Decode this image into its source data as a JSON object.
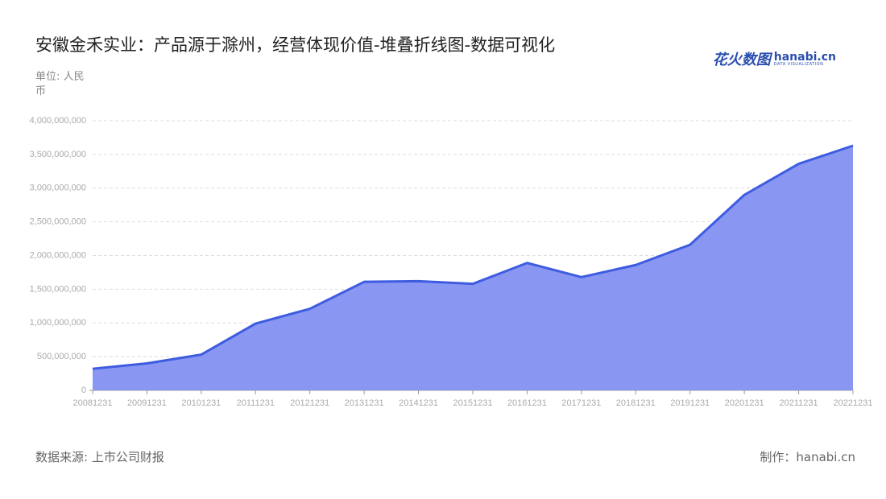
{
  "chart_data": {
    "type": "area",
    "title": "安徽金禾实业：产品源于滁州，经营体现价值-堆叠折线图-数据可视化",
    "unit_label": "单位: 人民币",
    "source": "数据来源: 上市公司财报",
    "credit": "制作：hanabi.cn",
    "logo": {
      "name": "花火数图",
      "site": "hanabi.cn",
      "tagline": "DATA VISUALIZATION"
    },
    "categories": [
      "20081231",
      "20091231",
      "20101231",
      "20111231",
      "20121231",
      "20131231",
      "20141231",
      "20151231",
      "20161231",
      "20171231",
      "20181231",
      "20191231",
      "20201231",
      "20211231",
      "20221231"
    ],
    "values": [
      320000000,
      400000000,
      530000000,
      990000000,
      1210000000,
      1610000000,
      1620000000,
      1580000000,
      1890000000,
      1680000000,
      1860000000,
      2160000000,
      2900000000,
      3360000000,
      3630000000
    ],
    "line_color": "#3d5ce0",
    "fill_color": "#8a97f2",
    "ylim": [
      0,
      4000000000
    ],
    "yticks": [
      0,
      {
        "value": 500000000,
        "label": "500,000,000"
      },
      {
        "value": 1000000000,
        "label": "1,000,000,000"
      },
      {
        "value": 1500000000,
        "label": "1,500,000,000"
      },
      {
        "value": 2000000000,
        "label": "2,000,000,000"
      },
      {
        "value": 2500000000,
        "label": "2,500,000,000"
      },
      {
        "value": 3000000000,
        "label": "3,000,000,000"
      },
      {
        "value": 3500000000,
        "label": "3,500,000,000"
      },
      {
        "value": 4000000000,
        "label": "4,000,000,000"
      }
    ],
    "grid": true
  }
}
